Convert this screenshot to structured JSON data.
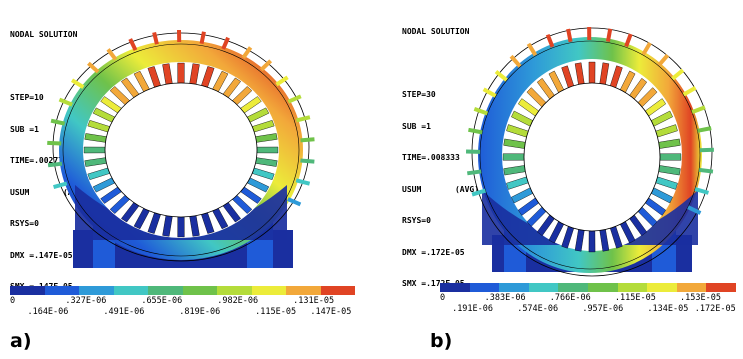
{
  "panels": [
    {
      "id": "a",
      "label": "a)",
      "info": [
        "NODAL SOLUTION",
        "",
        "STEP=10",
        "SUB =1",
        "TIME=.002778",
        "USUM       (AVG)",
        "RSYS=0",
        "DMX =.147E-05",
        "SMX =.147E-05"
      ],
      "legend_top": [
        "0",
        ".327E-06",
        ".655E-06",
        ".982E-06",
        ".131E-05"
      ],
      "legend_bottom": [
        ".164E-06",
        ".491E-06",
        ".819E-06",
        ".115E-05",
        ".147E-05"
      ]
    },
    {
      "id": "b",
      "label": "b)",
      "info": [
        "NODAL SOLUTION",
        "",
        "STEP=30",
        "SUB =1",
        "TIME=.008333",
        "USUM       (AVG)",
        "RSYS=0",
        "DMX =.172E-05",
        "SMX =.172E-05"
      ],
      "legend_top": [
        "0",
        ".383E-06",
        ".766E-06",
        ".115E-05",
        ".153E-05"
      ],
      "legend_bottom": [
        ".191E-06",
        ".574E-06",
        ".957E-06",
        ".134E-05",
        ".172E-05"
      ]
    }
  ],
  "colors": {
    "contour_scale": [
      "#1a2fa0",
      "#1f5bd8",
      "#2e9ad8",
      "#41c7c4",
      "#4fb87a",
      "#6fc24a",
      "#b4dc3a",
      "#ecec3a",
      "#f2a83a",
      "#e04424"
    ]
  }
}
